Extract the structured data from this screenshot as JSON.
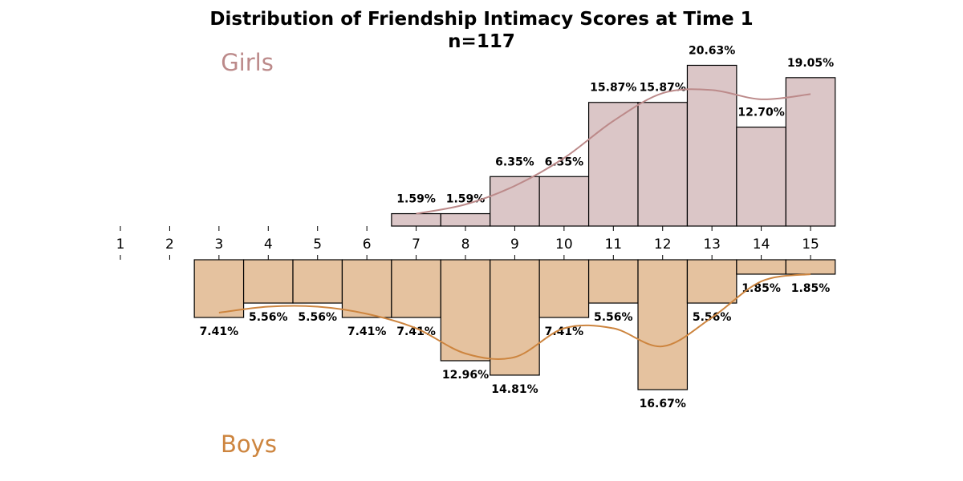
{
  "chart_data": {
    "type": "bar",
    "title": "Distribution of Friendship Intimacy Scores at Time 1",
    "subtitle": "n=117",
    "categories": [
      1,
      2,
      3,
      4,
      5,
      6,
      7,
      8,
      9,
      10,
      11,
      12,
      13,
      14,
      15
    ],
    "xlim": [
      0.5,
      15.5
    ],
    "grid": false,
    "series": [
      {
        "name": "Girls",
        "direction": "up",
        "color": "#dbc6c7",
        "curve_color": "#bc8a8a",
        "values": [
          null,
          null,
          null,
          null,
          null,
          null,
          1.59,
          1.59,
          6.35,
          6.35,
          15.87,
          15.87,
          20.63,
          12.7,
          19.05
        ],
        "labels": [
          "",
          "",
          "",
          "",
          "",
          "",
          "1.59%",
          "1.59%",
          "6.35%",
          "6.35%",
          "15.87%",
          "15.87%",
          "20.63%",
          "12.70%",
          "19.05%"
        ]
      },
      {
        "name": "Boys",
        "direction": "down",
        "color": "#e5c29f",
        "curve_color": "#cd853f",
        "values": [
          null,
          null,
          7.41,
          5.56,
          5.56,
          7.41,
          7.41,
          12.96,
          14.81,
          7.41,
          5.56,
          16.67,
          5.56,
          1.85,
          1.85
        ],
        "labels": [
          "",
          "",
          "7.41%",
          "5.56%",
          "5.56%",
          "7.41%",
          "7.41%",
          "12.96%",
          "14.81%",
          "7.41%",
          "5.56%",
          "16.67%",
          "5.56%",
          "1.85%",
          "1.85%"
        ]
      }
    ]
  }
}
